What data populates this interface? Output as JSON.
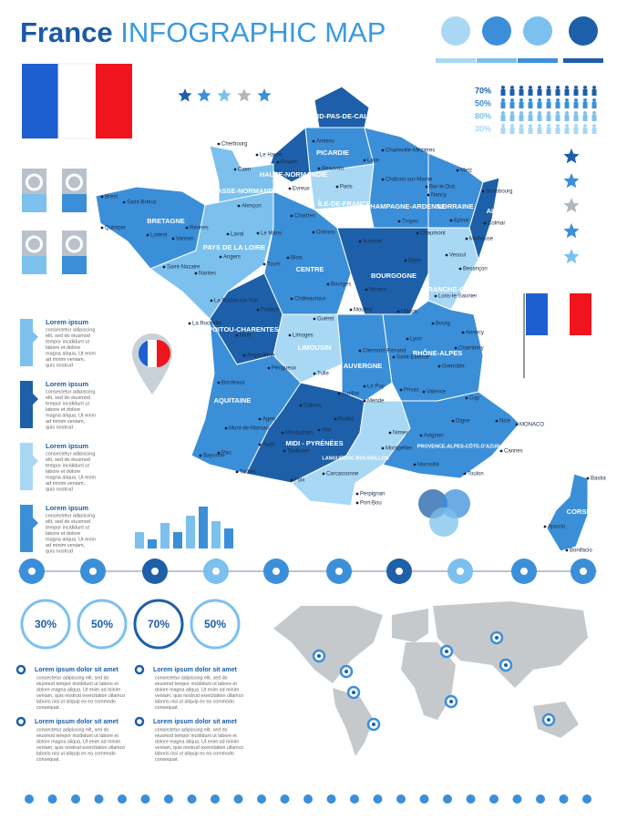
{
  "header": {
    "title": "France",
    "subtitle": "INFOGRAPHIC MAP"
  },
  "stats": [
    "70%",
    "50%",
    "80%",
    "30%"
  ],
  "regions": [
    "NORD-PAS-DE-CALAIS",
    "PICARDIE",
    "HAUTE-NORMANDIE",
    "BASSE-NORMANDIE",
    "ÎLE-DE-FRANCE",
    "CHAMPAGNE-ARDENNE",
    "LORRAINE",
    "ALSACE",
    "BRETAGNE",
    "PAYS DE LA LOIRE",
    "CENTRE",
    "BOURGOGNE",
    "FRANCHE-COMTÉ",
    "POITOU-CHARENTES",
    "LIMOUSIN",
    "AUVERGNE",
    "RHÔNE-ALPES",
    "AQUITAINE",
    "MIDI - PYRÉNÉES",
    "LANGUEDOC-ROUSSILLON",
    "PROVENCE-ALPES-CÔTE-D'AZUR",
    "CORSE"
  ],
  "cities": [
    "Cherbourg",
    "Le Havre",
    "Rouen",
    "Caen",
    "Evreux",
    "Beauvais",
    "Amiens",
    "Laon",
    "Charleville-Mézières",
    "Châlons-sur-Marne",
    "Metz",
    "Bar-le-Duc",
    "Nancy",
    "Strasbourg",
    "Brest",
    "Saint-Brieuc",
    "Quimper",
    "Lorient",
    "Vannes",
    "Rennes",
    "Alençon",
    "Laval",
    "Le Mans",
    "Chartres",
    "Paris",
    "Troyes",
    "Epinal",
    "Colmar",
    "Mulhouse",
    "Saint-Nazaire",
    "Nantes",
    "Angers",
    "Tours",
    "Blois",
    "Orléans",
    "Auxerre",
    "Chaumont",
    "Vesoul",
    "Besançon",
    "Dijon",
    "Bourges",
    "Nevers",
    "La Roche-sur-Yon",
    "Poitiers",
    "Châteauroux",
    "Lons-le-Saunier",
    "Mâcon",
    "La Rochelle",
    "Moulins",
    "Guéret",
    "Limoges",
    "Bourg",
    "Annecy",
    "Lyon",
    "Chambéry",
    "Saint-Étienne",
    "Clermont-Ferrand",
    "Niort",
    "Angoulême",
    "Périgueux",
    "Tulle",
    "Grenoble",
    "Le Puy",
    "Bordeaux",
    "Aurillac",
    "Privas",
    "Valence",
    "Gap",
    "Agen",
    "Cahors",
    "Rodez",
    "Mende",
    "Digne",
    "Montauban",
    "Albi",
    "Nimes",
    "Avignon",
    "Nice",
    "Toulouse",
    "Montpellier",
    "Mont-de-Marsan",
    "Bayonne",
    "Pau",
    "Auch",
    "Tarbes",
    "Foix",
    "Carcassonne",
    "Marseille",
    "Toulon",
    "Cannes",
    "Perpignan",
    "Port-Bou",
    "MONACO",
    "Bastia",
    "Ajaccio",
    "Bonifacio"
  ],
  "side_blocks": [
    {
      "title": "Lorem ipsum",
      "lines": [
        "consectetur adipiscing",
        "elit, sed do eiusmod",
        "tempor incididunt ut",
        "labore et dolore",
        "magna aliqua. Ut enim",
        "ad minim veniam,",
        "quis nostrud"
      ]
    },
    {
      "title": "Lorem ipsum",
      "lines": [
        "consectetur adipiscing",
        "elit, sed do eiusmod",
        "tempor incididunt ut",
        "labore et dolore",
        "magna aliqua. Ut enim",
        "ad minim veniam,",
        "quis nostrud"
      ]
    },
    {
      "title": "Lorem ipsum",
      "lines": [
        "consectetur adipiscing",
        "elit, sed do eiusmod",
        "tempor incididunt ut",
        "labore et dolore",
        "magna aliqua. Ut enim",
        "ad minim veniam,",
        "quis nostrud"
      ]
    },
    {
      "title": "Lorem ipsum",
      "lines": [
        "consectetur adipiscing",
        "elit, sed do eiusmod",
        "tempor incididunt ut",
        "labore et dolore",
        "magna aliqua. Ut enim",
        "ad minim veniam,",
        "quis nostrud"
      ]
    }
  ],
  "circle_stats": [
    "30%",
    "50%",
    "70%",
    "50%"
  ],
  "bottom_blocks": [
    {
      "title": "Lorem ipsum dolor sit amet",
      "lines": [
        "consectetur adipiscing elit, sed do",
        "eiusmod tempor incididunt ut labore et",
        "dolore magna aliqua. Ut enim ad minim",
        "veniam, quis nostrud exercitation ullamco",
        "laboris nisi ut aliquip ex ea commodo",
        "consequat."
      ]
    },
    {
      "title": "Lorem ipsum dolor sit amet",
      "lines": [
        "consectetur adipiscing elit, sed do",
        "eiusmod tempor incididunt ut labore et",
        "dolore magna aliqua. Ut enim ad minim",
        "veniam, quis nostrud exercitation ullamco",
        "laboris nisi ut aliquip ex ea commodo",
        "consequat."
      ]
    },
    {
      "title": "Lorem ipsum dolor sit amet",
      "lines": [
        "consectetur adipiscing elit, sed do",
        "eiusmod tempor incididunt ut labore et",
        "dolore magna aliqua. Ut enim ad minim",
        "veniam, quis nostrud exercitation ullamco",
        "laboris nisi ut aliquip ex ea commodo",
        "consequat."
      ]
    },
    {
      "title": "Lorem ipsum dolor sit amet",
      "lines": [
        "consectetur adipiscing elit, sed do",
        "eiusmod tempor incididunt ut labore et",
        "dolore magna aliqua. Ut enim ad minim",
        "veniam, quis nostrud exercitation ullamco",
        "laboris nisi ut aliquip ex ea commodo",
        "consequat."
      ]
    }
  ]
}
